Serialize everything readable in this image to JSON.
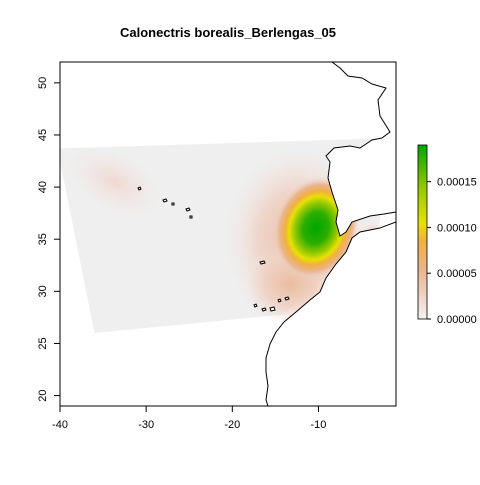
{
  "chart_data": {
    "type": "heatmap",
    "title": "Calonectris borealis_Berlengas_05",
    "xlabel": "",
    "ylabel": "",
    "xlim": [
      -40,
      -1
    ],
    "ylim": [
      19,
      52
    ],
    "x_ticks": [
      -40,
      -30,
      -20,
      -10
    ],
    "y_ticks": [
      20,
      25,
      30,
      35,
      40,
      45,
      50
    ],
    "x_tick_labels": [
      "-40",
      "-30",
      "-20",
      "-10"
    ],
    "y_tick_labels": [
      "20",
      "25",
      "30",
      "35",
      "40",
      "45",
      "50"
    ],
    "colorbar": {
      "min": 0,
      "max": 0.00019,
      "ticks": [
        0,
        5e-05,
        0.0001,
        0.00015
      ],
      "tick_labels": [
        "0.00000",
        "0.00005",
        "0.00010",
        "0.00015"
      ],
      "colors": [
        "#f2f2f2",
        "#f0d6cc",
        "#e9b58f",
        "#f1b041",
        "#e8e104",
        "#98c900",
        "#00a600"
      ]
    },
    "grid": false,
    "legend": "right",
    "study_area_polygon": [
      [
        -40.3,
        43.7
      ],
      [
        -1.5,
        44.7
      ],
      [
        -3.0,
        36.0
      ],
      [
        -14.0,
        27.8
      ],
      [
        -20.0,
        27.3
      ],
      [
        -36.0,
        26.0
      ],
      [
        -40.3,
        43.7
      ]
    ],
    "density_hotspots": [
      {
        "lon": -10.9,
        "lat": 36.3,
        "value": 0.00019
      },
      {
        "lon": -9.5,
        "lat": 37.5,
        "value": 0.00012
      },
      {
        "lon": -12.0,
        "lat": 33.5,
        "value": 8e-05
      },
      {
        "lon": -13.0,
        "lat": 29.5,
        "value": 3e-05
      },
      {
        "lon": -36.0,
        "lat": 40.5,
        "value": 1e-05
      },
      {
        "lon": -6.0,
        "lat": 36.2,
        "value": 2e-05
      }
    ]
  }
}
